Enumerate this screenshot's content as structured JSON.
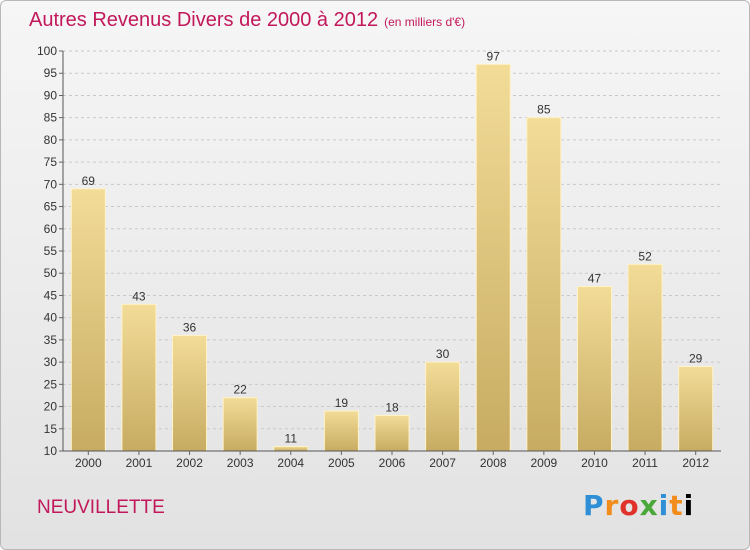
{
  "title": "Autres Revenus Divers de 2000 à 2012",
  "subtitle": "(en milliers d'€)",
  "town": "NEUVILLETTE",
  "logo": [
    "P",
    "r",
    "o",
    "x",
    "i",
    "t",
    "i"
  ],
  "colors": {
    "title": "#c2185b",
    "bar_top": "#f2dc97",
    "bar_bottom": "#c7ab62"
  },
  "chart_data": {
    "type": "bar",
    "title": "Autres Revenus Divers de 2000 à 2012",
    "subtitle": "(en milliers d'€)",
    "categories": [
      "2000",
      "2001",
      "2002",
      "2003",
      "2004",
      "2005",
      "2006",
      "2007",
      "2008",
      "2009",
      "2010",
      "2011",
      "2012"
    ],
    "values": [
      69,
      43,
      36,
      22,
      11,
      19,
      18,
      30,
      97,
      85,
      47,
      52,
      29
    ],
    "ylim": [
      10,
      100
    ],
    "yticks": [
      10,
      15,
      20,
      25,
      30,
      35,
      40,
      45,
      50,
      55,
      60,
      65,
      70,
      75,
      80,
      85,
      90,
      95,
      100
    ],
    "grid": true,
    "legend": "none"
  }
}
